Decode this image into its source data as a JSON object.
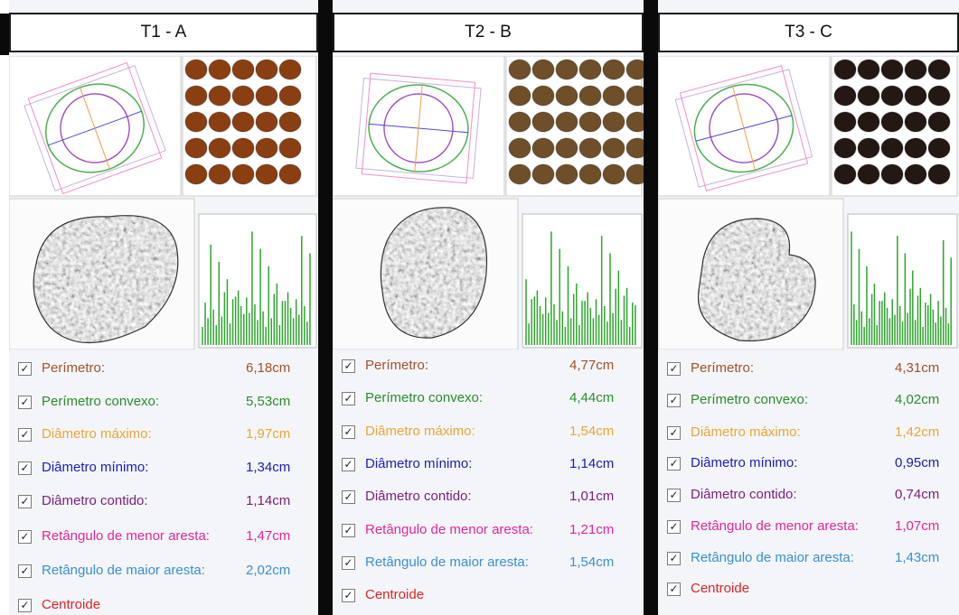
{
  "panels": [
    {
      "title": "T1 - A",
      "measures": [
        {
          "label": "Perímetro:",
          "value": "6,18cm"
        },
        {
          "label": "Perímetro convexo:",
          "value": "5,53cm"
        },
        {
          "label": "Diâmetro máximo:",
          "value": "1,97cm"
        },
        {
          "label": "Diâmetro mínimo:",
          "value": "1,34cm"
        },
        {
          "label": "Diâmetro contido:",
          "value": "1,14cm"
        },
        {
          "label": "Retângulo de menor aresta:",
          "value": "1,47cm"
        },
        {
          "label": "Retângulo de maior aresta:",
          "value": "2,02cm"
        },
        {
          "label": "Centroide"
        }
      ]
    },
    {
      "title": "T2 - B",
      "measures": [
        {
          "label": "Perímetro:",
          "value": "4,77cm"
        },
        {
          "label": "Perímetro convexo:",
          "value": "4,44cm"
        },
        {
          "label": "Diâmetro máximo:",
          "value": "1,54cm"
        },
        {
          "label": "Diâmetro mínimo:",
          "value": "1,14cm"
        },
        {
          "label": "Diâmetro contido:",
          "value": "1,01cm"
        },
        {
          "label": "Retângulo de menor aresta:",
          "value": "1,21cm"
        },
        {
          "label": "Retângulo de maior aresta:",
          "value": "1,54cm"
        },
        {
          "label": "Centroide"
        }
      ]
    },
    {
      "title": "T3 - C",
      "measures": [
        {
          "label": "Perímetro:",
          "value": "4,31cm"
        },
        {
          "label": "Perímetro convexo:",
          "value": "4,02cm"
        },
        {
          "label": "Diâmetro máximo:",
          "value": "1,42cm"
        },
        {
          "label": "Diâmetro mínimo:",
          "value": "0,95cm"
        },
        {
          "label": "Diâmetro contido:",
          "value": "0,74cm"
        },
        {
          "label": "Retângulo de menor aresta:",
          "value": "1,07cm"
        },
        {
          "label": "Retângulo de maior aresta:",
          "value": "1,43cm"
        },
        {
          "label": "Centroide"
        }
      ]
    }
  ]
}
